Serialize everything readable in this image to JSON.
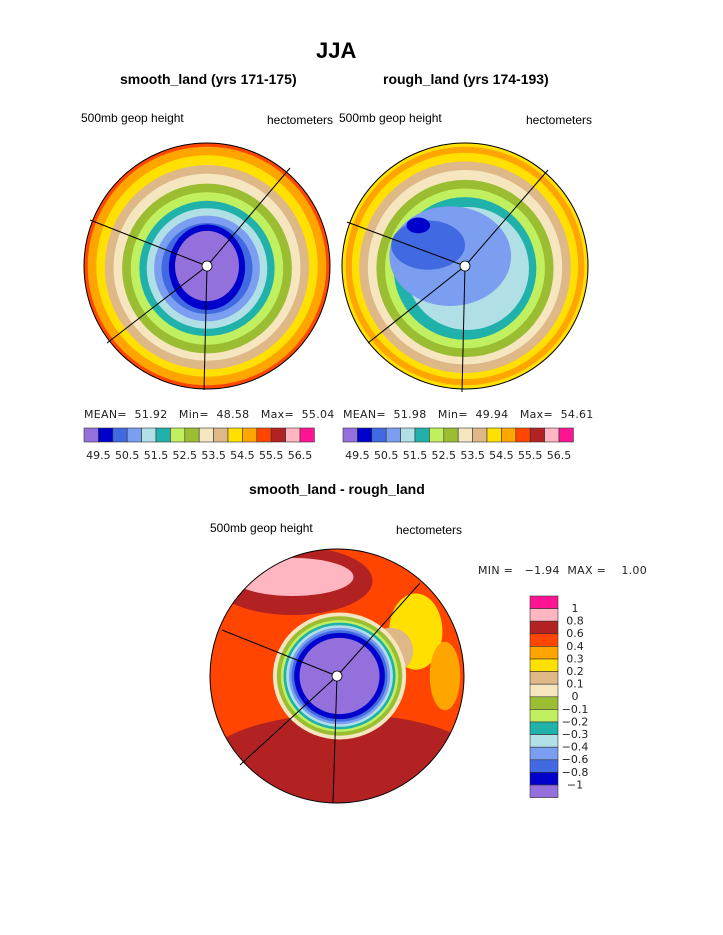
{
  "title": "JJA",
  "palette": [
    "#9370DB",
    "#0000CD",
    "#4169E1",
    "#7B9EF0",
    "#B0E0E6",
    "#20B2AA",
    "#C0F060",
    "#9ABD32",
    "#F5E6C0",
    "#DEB887",
    "#FFE000",
    "#FFA500",
    "#FF4500",
    "#B22222",
    "#FFB6C1",
    "#FF1493"
  ],
  "panels": [
    {
      "title": "smooth_land (yrs 171-175)",
      "left_label": "500mb geop height",
      "right_label": "hectometers",
      "stats": {
        "mean_label": "MEAN=",
        "mean": "51.92",
        "min_label": "Min=",
        "min": "48.58",
        "max_label": "Max=",
        "max": "55.04"
      }
    },
    {
      "title": "rough_land (yrs 174-193)",
      "left_label": "500mb geop height",
      "right_label": "hectometers",
      "stats": {
        "mean_label": "MEAN=",
        "mean": "51.98",
        "min_label": "Min=",
        "min": "49.94",
        "max_label": "Max=",
        "max": "54.61"
      }
    },
    {
      "title": "smooth_land - rough_land",
      "left_label": "500mb geop height",
      "right_label": "hectometers",
      "stats": {
        "text": "MIN =   −1.94  MAX =    1.00"
      }
    }
  ],
  "chart_data": [
    {
      "type": "heatmap",
      "title": "smooth_land (yrs 171-175)",
      "units": "hectometers",
      "variable": "500mb geop height",
      "levels": [
        "49.5",
        "50.5",
        "51.5",
        "52.5",
        "53.5",
        "54.5",
        "55.5",
        "56.5"
      ],
      "mean": 51.92,
      "min": 48.58,
      "max": 55.04
    },
    {
      "type": "heatmap",
      "title": "rough_land (yrs 174-193)",
      "units": "hectometers",
      "variable": "500mb geop height",
      "levels": [
        "49.5",
        "50.5",
        "51.5",
        "52.5",
        "53.5",
        "54.5",
        "55.5",
        "56.5"
      ],
      "mean": 51.98,
      "min": 49.94,
      "max": 54.61
    },
    {
      "type": "heatmap",
      "title": "smooth_land - rough_land",
      "units": "hectometers",
      "variable": "500mb geop height",
      "levels": [
        "1",
        "0.8",
        "0.6",
        "0.4",
        "0.3",
        "0.2",
        "0.1",
        "0",
        "−0.1",
        "−0.2",
        "−0.3",
        "−0.4",
        "−0.6",
        "−0.8",
        "−1"
      ],
      "min": -1.94,
      "max": 1.0
    }
  ]
}
